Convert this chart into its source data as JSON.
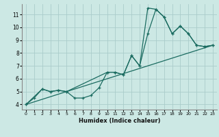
{
  "xlabel": "Humidex (Indice chaleur)",
  "xlim": [
    -0.5,
    23.5
  ],
  "ylim": [
    3.6,
    11.8
  ],
  "yticks": [
    4,
    5,
    6,
    7,
    8,
    9,
    10,
    11
  ],
  "xticks": [
    0,
    1,
    2,
    3,
    4,
    5,
    6,
    7,
    8,
    9,
    10,
    11,
    12,
    13,
    14,
    15,
    16,
    17,
    18,
    19,
    20,
    21,
    22,
    23
  ],
  "bg_color": "#cce8e4",
  "grid_color": "#aaccca",
  "line_color": "#1a6b60",
  "line1_x": [
    0,
    1,
    2,
    3,
    4,
    5,
    6,
    7,
    8,
    9,
    10,
    11,
    12,
    13,
    14,
    15,
    16,
    17,
    18,
    19,
    20,
    21,
    22,
    23
  ],
  "line1_y": [
    4.0,
    4.5,
    5.2,
    5.0,
    5.1,
    5.0,
    4.5,
    4.5,
    4.7,
    5.3,
    6.5,
    6.5,
    6.3,
    7.8,
    7.0,
    11.5,
    11.4,
    10.8,
    9.5,
    10.1,
    9.5,
    8.6,
    8.5,
    8.6
  ],
  "line2_x": [
    0,
    2,
    3,
    4,
    5,
    10,
    11,
    12,
    13,
    14,
    15,
    16,
    17,
    18,
    19,
    20,
    21,
    22,
    23
  ],
  "line2_y": [
    4.0,
    5.2,
    5.0,
    5.1,
    5.0,
    6.5,
    6.5,
    6.3,
    7.8,
    7.0,
    9.5,
    11.4,
    10.8,
    9.5,
    10.1,
    9.5,
    8.6,
    8.5,
    8.6
  ],
  "line3_x": [
    0,
    23
  ],
  "line3_y": [
    4.0,
    8.6
  ]
}
